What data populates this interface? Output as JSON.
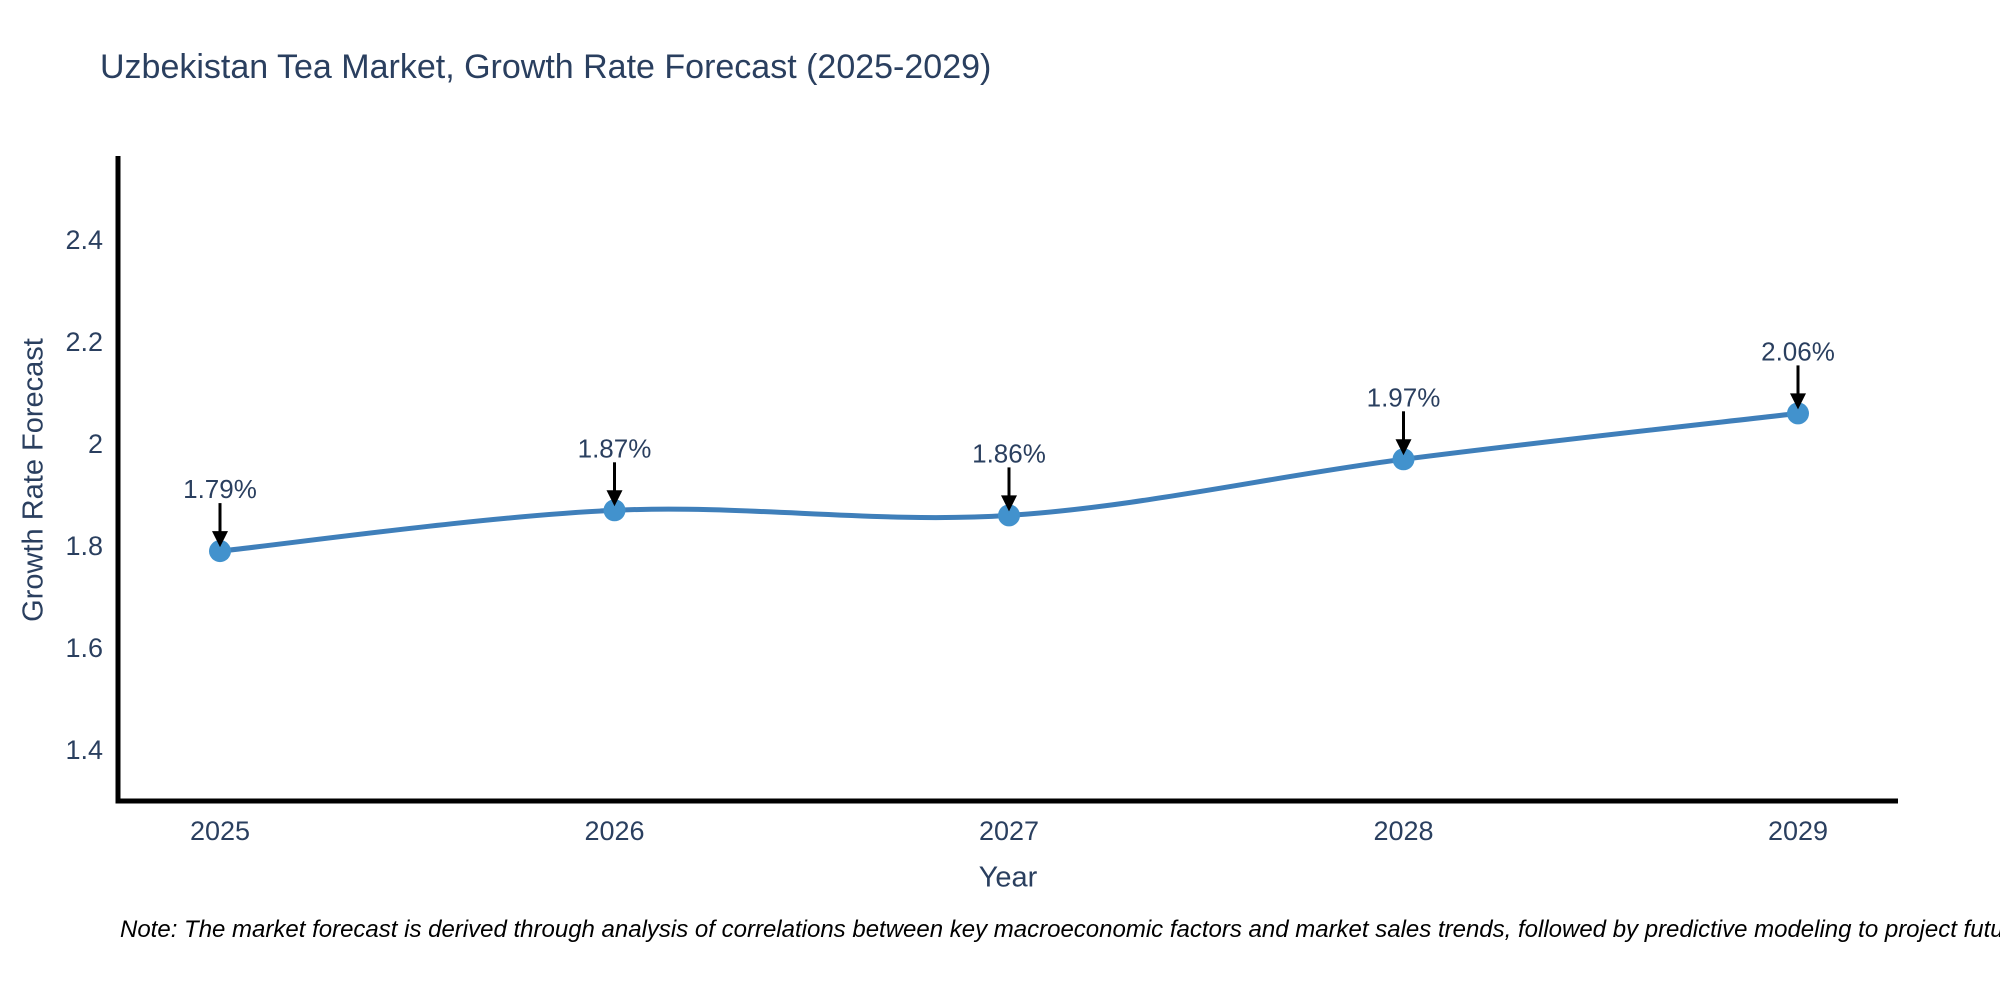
{
  "chart_data": {
    "type": "line",
    "title": "Uzbekistan Tea Market, Growth Rate Forecast (2025-2029)",
    "categories": [
      "2025",
      "2026",
      "2027",
      "2028",
      "2029"
    ],
    "series": [
      {
        "name": "Growth Rate Forecast",
        "values": [
          1.79,
          1.87,
          1.86,
          1.97,
          2.06
        ]
      }
    ],
    "point_labels": [
      "1.79%",
      "1.87%",
      "1.86%",
      "1.97%",
      "2.06%"
    ],
    "xlabel": "Year",
    "ylabel": "Growth Rate Forecast",
    "ytick_values": [
      1.4,
      1.6,
      1.8,
      2,
      2.2,
      2.4
    ],
    "ytick_labels": [
      "1.4",
      "1.6",
      "1.8",
      "2",
      "2.2",
      "2.4"
    ],
    "ylim": [
      1.3,
      2.565
    ],
    "grid": false,
    "legend_position": "none",
    "line_shape": "spline",
    "annotation_arrows": true,
    "colors": {
      "line": "#3f7fba",
      "marker": "#4292cd",
      "text": "#2a3f5f",
      "axis": "#000000",
      "arrow": "#000000",
      "background": "#ffffff"
    }
  },
  "note": {
    "text": "Note: The market forecast is derived through analysis of correlations between key macroeconomic factors and market sales trends, followed by predictive modeling to project future sales"
  }
}
